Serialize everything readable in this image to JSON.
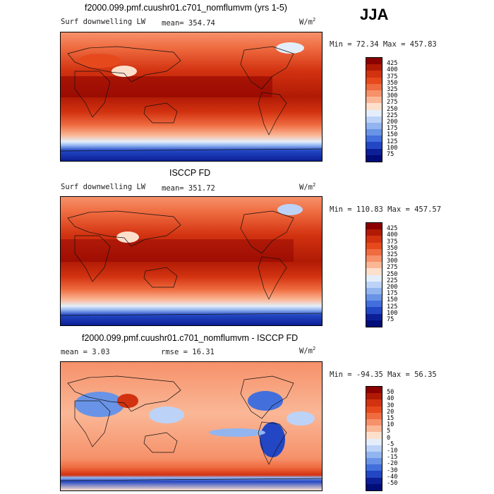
{
  "season": "JJA",
  "panels": [
    {
      "title": "f2000.099.pmf.cuushr01.c701_nomflumvm (yrs 1-5)",
      "left_label": "Surf downwelling LW",
      "mid_label": "mean= 354.74",
      "units": "W/m",
      "units_sup": "2",
      "minmax": "Min =  72.34 Max = 457.83",
      "levels": [
        "425",
        "400",
        "375",
        "350",
        "325",
        "300",
        "275",
        "250",
        "225",
        "200",
        "175",
        "150",
        "125",
        "100",
        "75"
      ],
      "colors": [
        "#8b0000",
        "#b01a05",
        "#d23210",
        "#e64a1c",
        "#ef6b40",
        "#f6916a",
        "#fab796",
        "#fde0cc",
        "#e4eefb",
        "#bcd3f7",
        "#92b5f0",
        "#6993e6",
        "#426fdc",
        "#2347c4",
        "#0c1f96",
        "#000c78"
      ]
    },
    {
      "title": "ISCCP FD",
      "left_label": "Surf downwelling LW",
      "mid_label": "mean= 351.72",
      "units": "W/m",
      "units_sup": "2",
      "minmax": "Min = 110.83 Max = 457.57",
      "levels": [
        "425",
        "400",
        "375",
        "350",
        "325",
        "300",
        "275",
        "250",
        "225",
        "200",
        "175",
        "150",
        "125",
        "100",
        "75"
      ],
      "colors": [
        "#8b0000",
        "#b01a05",
        "#d23210",
        "#e64a1c",
        "#ef6b40",
        "#f6916a",
        "#fab796",
        "#fde0cc",
        "#e4eefb",
        "#bcd3f7",
        "#92b5f0",
        "#6993e6",
        "#426fdc",
        "#2347c4",
        "#0c1f96",
        "#000c78"
      ]
    },
    {
      "title": "f2000.099.pmf.cuushr01.c701_nomflumvm - ISCCP FD",
      "left_label": "mean =    3.03",
      "mid_label": "rmse =   16.31",
      "units": "W/m",
      "units_sup": "2",
      "minmax": "Min = -94.35 Max =  56.35",
      "levels": [
        "50",
        "40",
        "30",
        "20",
        "15",
        "10",
        "5",
        "0",
        "-5",
        "-10",
        "-15",
        "-20",
        "-30",
        "-40",
        "-50"
      ],
      "colors": [
        "#8b0000",
        "#b01a05",
        "#d23210",
        "#e64a1c",
        "#ef6b40",
        "#f6916a",
        "#fab796",
        "#fde0cc",
        "#e4eefb",
        "#bcd3f7",
        "#92b5f0",
        "#6993e6",
        "#426fdc",
        "#2347c4",
        "#0c1f96",
        "#000c78"
      ]
    }
  ],
  "chart_data": [
    {
      "type": "heatmap",
      "title": "f2000.099.pmf.cuushr01.c701_nomflumvm (yrs 1-5)",
      "subtitle": "Surf downwelling LW",
      "mean": 354.74,
      "min": 72.34,
      "max": 457.83,
      "units": "W/m2",
      "contour_levels": [
        75,
        100,
        125,
        150,
        175,
        200,
        225,
        250,
        275,
        300,
        325,
        350,
        375,
        400,
        425
      ]
    },
    {
      "type": "heatmap",
      "title": "ISCCP FD",
      "subtitle": "Surf downwelling LW",
      "mean": 351.72,
      "min": 110.83,
      "max": 457.57,
      "units": "W/m2",
      "contour_levels": [
        75,
        100,
        125,
        150,
        175,
        200,
        225,
        250,
        275,
        300,
        325,
        350,
        375,
        400,
        425
      ]
    },
    {
      "type": "heatmap",
      "title": "f2000.099.pmf.cuushr01.c701_nomflumvm - ISCCP FD",
      "mean": 3.03,
      "rmse": 16.31,
      "min": -94.35,
      "max": 56.35,
      "units": "W/m2",
      "contour_levels": [
        -50,
        -40,
        -30,
        -20,
        -15,
        -10,
        -5,
        0,
        5,
        10,
        15,
        20,
        30,
        40,
        50
      ]
    }
  ]
}
